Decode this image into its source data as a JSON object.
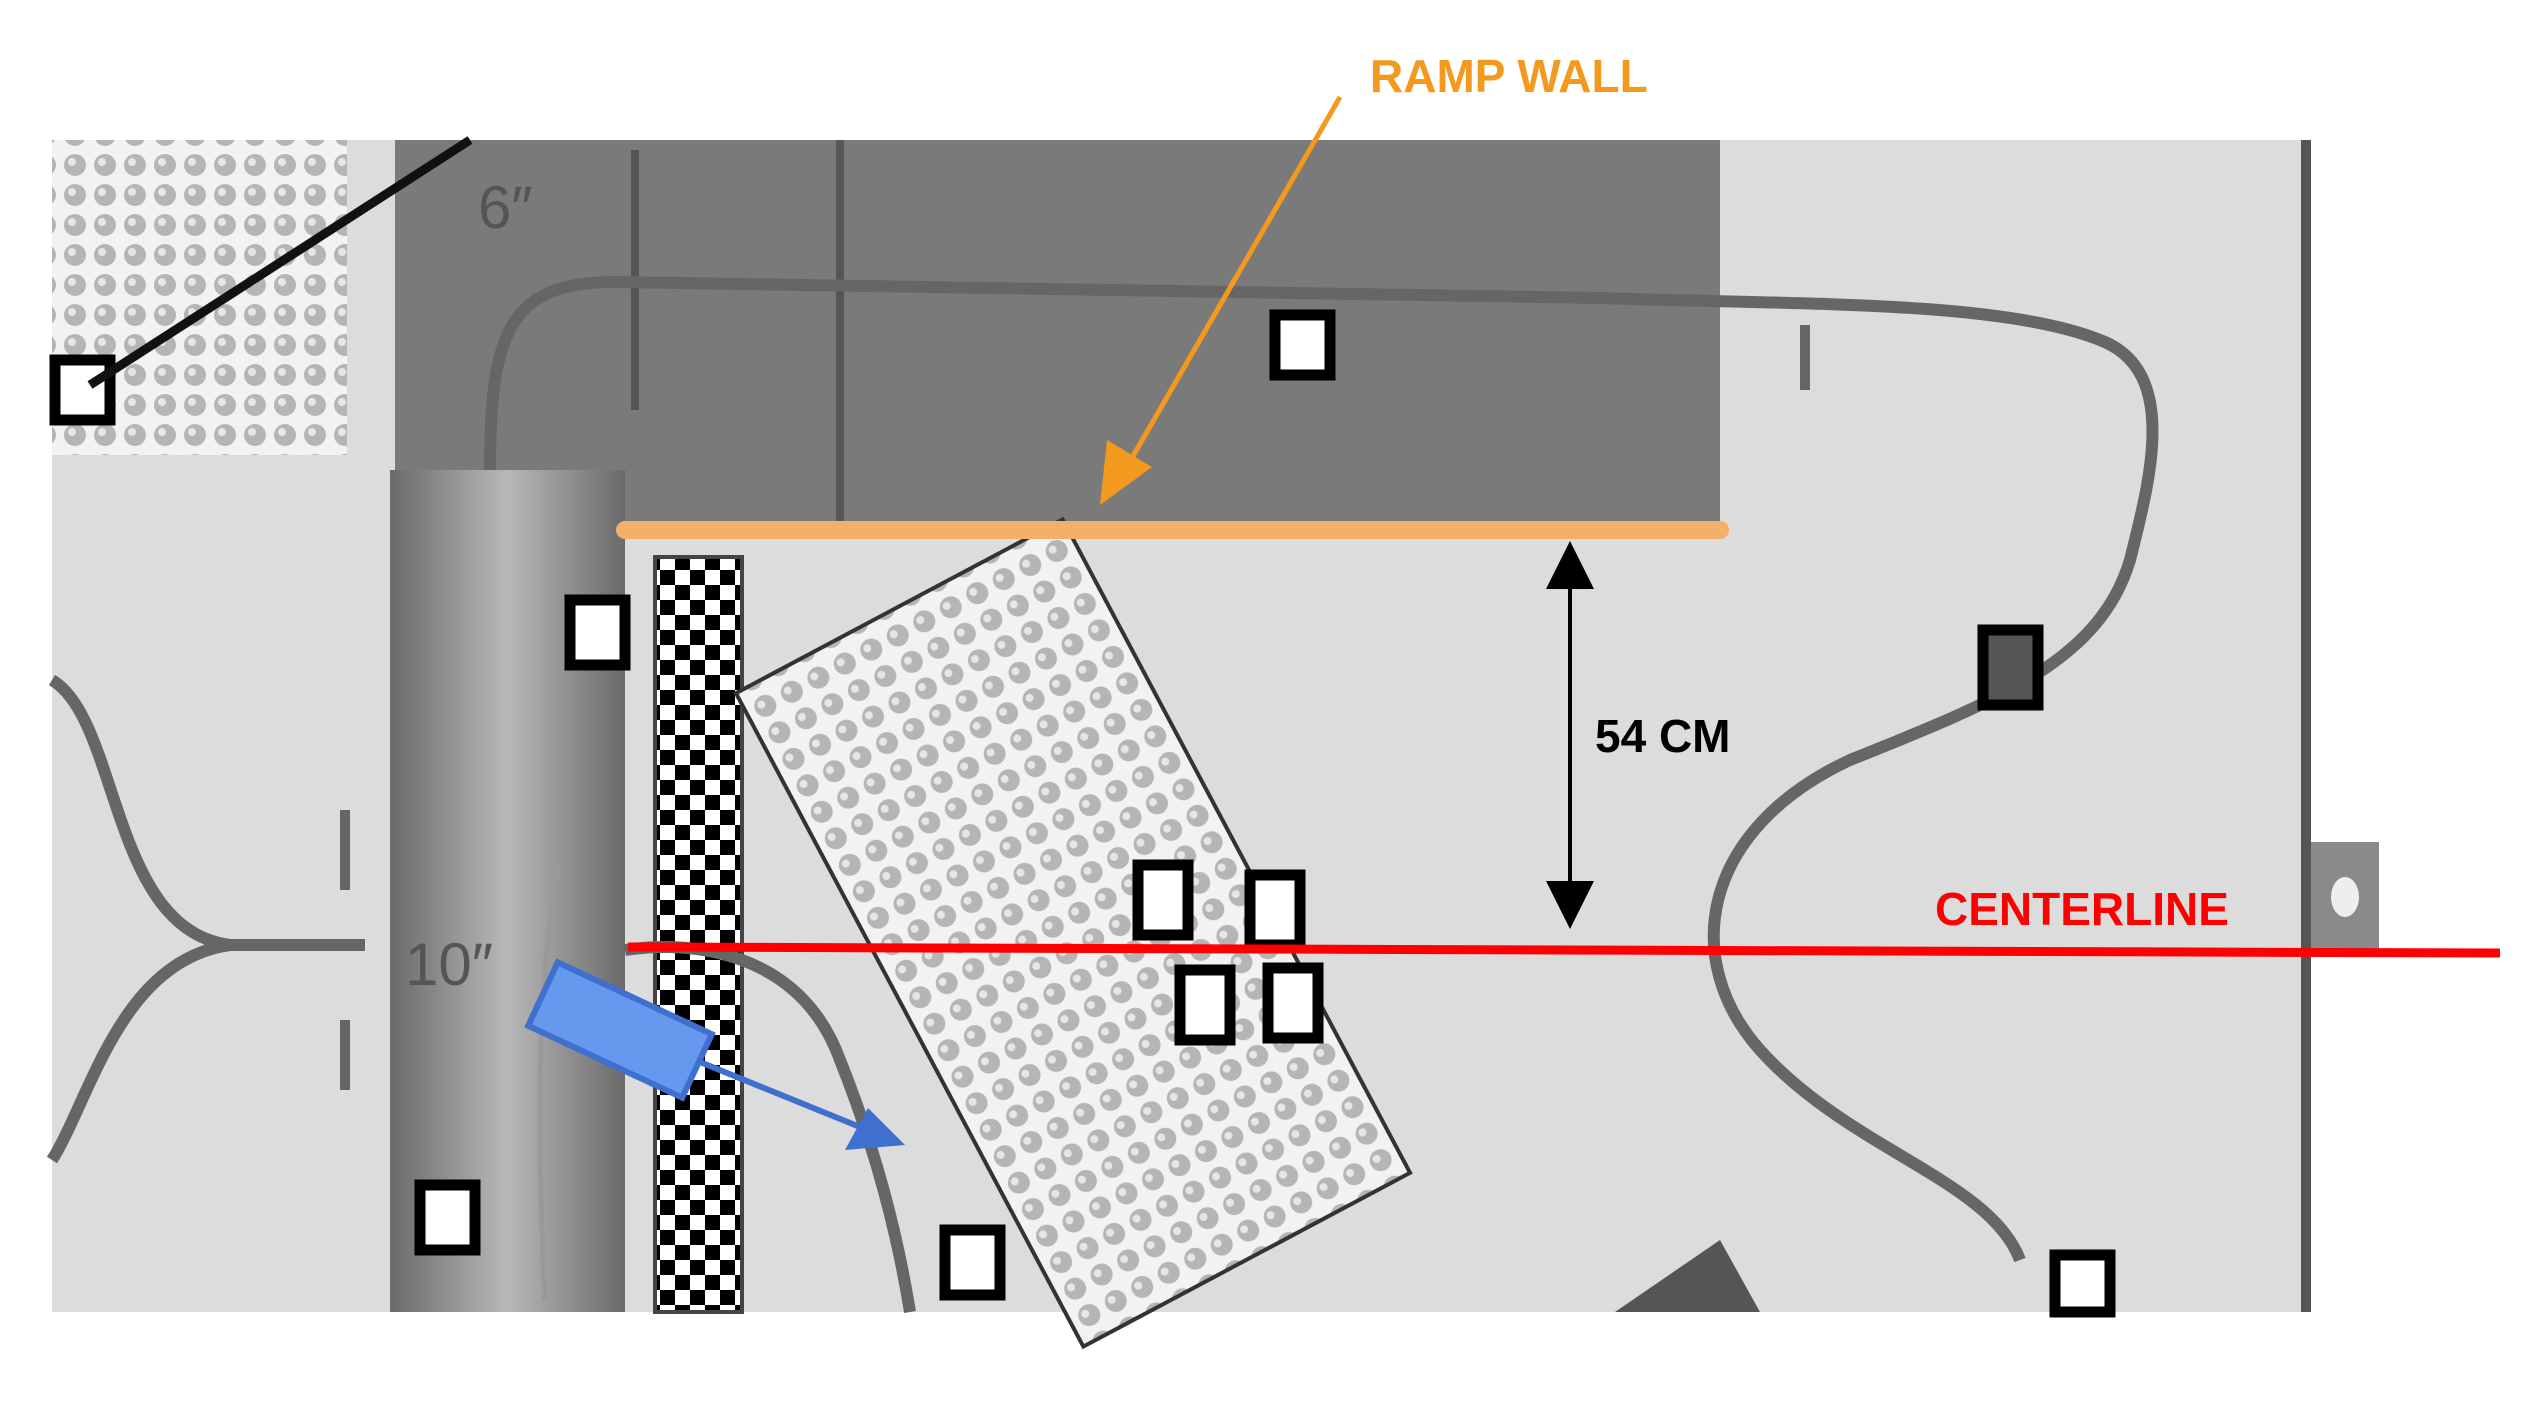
{
  "labels": {
    "ramp_wall": "RAMP WALL",
    "measurement": "54 CM",
    "centerline": "CENTERLINE",
    "ramp_height": "6″",
    "bridge_height": "10″"
  },
  "colors": {
    "ramp_wall": "#f39a1e",
    "ramp_wall_line": "#f4b06a",
    "centerline": "#ff0000",
    "robot": "#5b8ee6",
    "field": "#dcdcdc",
    "ramp": "#7a7a7a",
    "path": "#666666"
  }
}
